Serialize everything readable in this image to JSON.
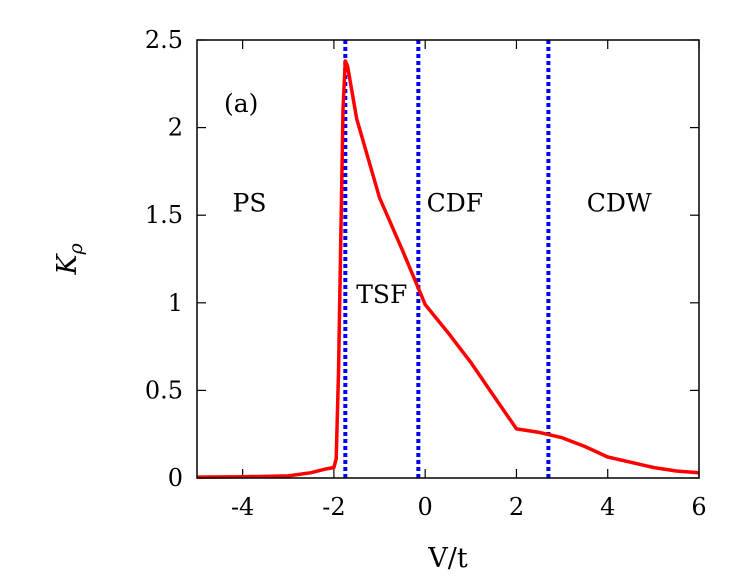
{
  "chart_data": {
    "type": "line",
    "panel_label": "(a)",
    "xlabel": "V/t",
    "ylabel_main": "K",
    "ylabel_sub": "ρ",
    "xlim": [
      -5,
      6
    ],
    "ylim": [
      0,
      2.5
    ],
    "xticks": [
      {
        "value": -4,
        "label": "-4"
      },
      {
        "value": -2,
        "label": "-2"
      },
      {
        "value": 0,
        "label": "0"
      },
      {
        "value": 2,
        "label": "2"
      },
      {
        "value": 4,
        "label": "4"
      },
      {
        "value": 6,
        "label": "6"
      }
    ],
    "yticks": [
      {
        "value": 0,
        "label": "0"
      },
      {
        "value": 0.5,
        "label": "0.5"
      },
      {
        "value": 1,
        "label": "1"
      },
      {
        "value": 1.5,
        "label": "1.5"
      },
      {
        "value": 2,
        "label": "2"
      },
      {
        "value": 2.5,
        "label": "2.5"
      }
    ],
    "grid": false,
    "series": [
      {
        "color": "#ff0000",
        "x": [
          -5,
          -4,
          -3,
          -2.5,
          -2.2,
          -2.0,
          -1.95,
          -1.9,
          -1.8,
          -1.75,
          -1.7,
          -1.5,
          -1.0,
          -0.5,
          0,
          0.5,
          1.0,
          1.5,
          2.0,
          2.5,
          3.0,
          3.5,
          4.0,
          4.5,
          5.0,
          5.5,
          6.0
        ],
        "y": [
          0.005,
          0.007,
          0.012,
          0.03,
          0.05,
          0.06,
          0.11,
          0.6,
          2.1,
          2.38,
          2.35,
          2.05,
          1.6,
          1.3,
          0.99,
          0.83,
          0.66,
          0.47,
          0.28,
          0.26,
          0.23,
          0.18,
          0.12,
          0.09,
          0.06,
          0.04,
          0.03
        ]
      }
    ],
    "boundaries": {
      "color": "#0000ff",
      "x": [
        -1.75,
        -0.15,
        2.7
      ]
    },
    "region_labels": [
      {
        "text": "PS",
        "x": -3.85,
        "y": 1.52
      },
      {
        "text": "TSF",
        "x": -0.95,
        "y": 1.0
      },
      {
        "text": "CDF",
        "x": 0.65,
        "y": 1.52
      },
      {
        "text": "CDW",
        "x": 4.25,
        "y": 1.52
      }
    ]
  }
}
